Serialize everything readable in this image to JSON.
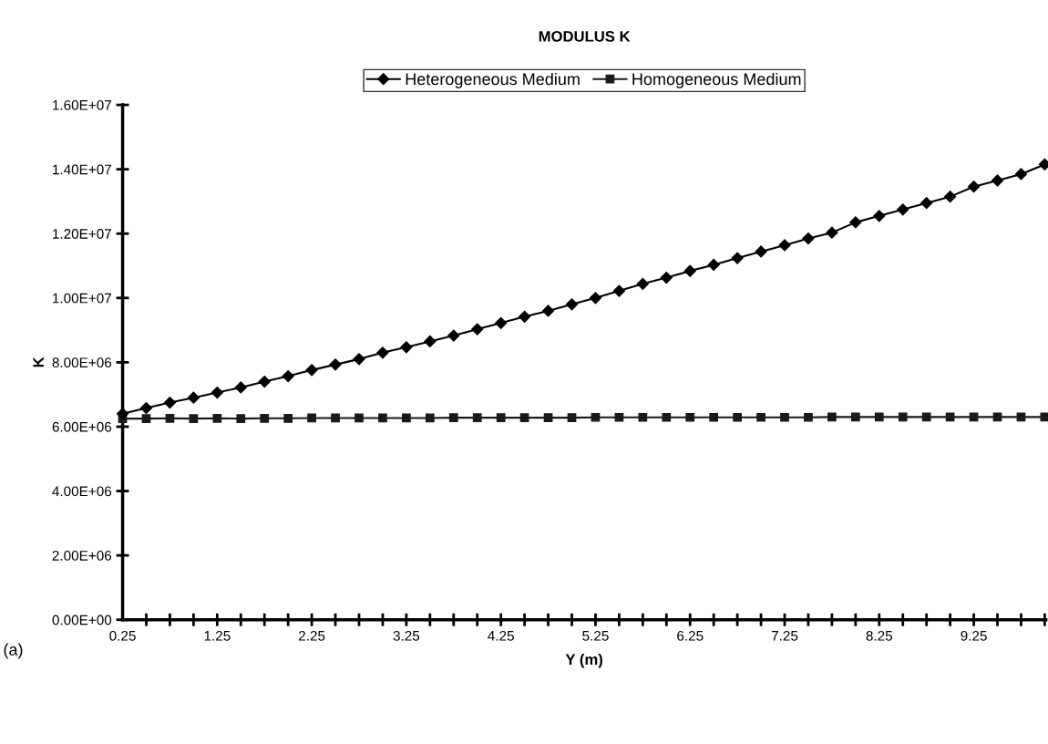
{
  "chart_data": {
    "type": "line",
    "title": "MODULUS K",
    "xlabel": "Y (m)",
    "ylabel": "K",
    "categories": [
      "0.25",
      null,
      null,
      null,
      "1.25",
      null,
      null,
      null,
      "2.25",
      null,
      null,
      null,
      "3.25",
      null,
      null,
      null,
      "4.25",
      null,
      null,
      null,
      "5.25",
      null,
      null,
      null,
      "6.25",
      null,
      null,
      null,
      "7.25",
      null,
      null,
      null,
      "8.25",
      null,
      null,
      null,
      "9.25",
      null,
      null,
      null
    ],
    "series": [
      {
        "name": "Heterogeneous Medium",
        "color": "#000000",
        "marker": "diamond",
        "values": [
          6400000,
          6580000,
          6750000,
          6900000,
          7060000,
          7220000,
          7400000,
          7570000,
          7760000,
          7930000,
          8100000,
          8300000,
          8470000,
          8650000,
          8830000,
          9030000,
          9220000,
          9420000,
          9600000,
          9800000,
          10000000,
          10220000,
          10440000,
          10630000,
          10840000,
          11030000,
          11240000,
          11440000,
          11640000,
          11850000,
          12030000,
          12350000,
          12550000,
          12750000,
          12950000,
          13150000,
          13460000,
          13650000,
          13850000,
          14150000
        ]
      },
      {
        "name": "Homogeneous Medium",
        "color": "#1a1a1a",
        "marker": "square",
        "values": [
          6250000,
          6250000,
          6260000,
          6250000,
          6260000,
          6250000,
          6260000,
          6260000,
          6270000,
          6270000,
          6270000,
          6270000,
          6270000,
          6270000,
          6280000,
          6280000,
          6280000,
          6280000,
          6280000,
          6280000,
          6290000,
          6290000,
          6290000,
          6290000,
          6290000,
          6290000,
          6290000,
          6290000,
          6290000,
          6290000,
          6300000,
          6300000,
          6300000,
          6300000,
          6300000,
          6300000,
          6300000,
          6300000,
          6300000,
          6300000
        ]
      }
    ],
    "ylim": [
      0,
      16000000
    ],
    "yticks": [
      {
        "value": 0,
        "label": "0.00E+00"
      },
      {
        "value": 2000000,
        "label": "2.00E+06"
      },
      {
        "value": 4000000,
        "label": "4.00E+06"
      },
      {
        "value": 6000000,
        "label": "6.00E+06"
      },
      {
        "value": 8000000,
        "label": "8.00E+06"
      },
      {
        "value": 10000000,
        "label": "1.00E+07"
      },
      {
        "value": 12000000,
        "label": "1.20E+07"
      },
      {
        "value": 14000000,
        "label": "1.40E+07"
      },
      {
        "value": 16000000,
        "label": "1.60E+07"
      }
    ],
    "grid": false,
    "legend": "top",
    "line_style": "solid",
    "annotations": [
      "(a)"
    ]
  }
}
